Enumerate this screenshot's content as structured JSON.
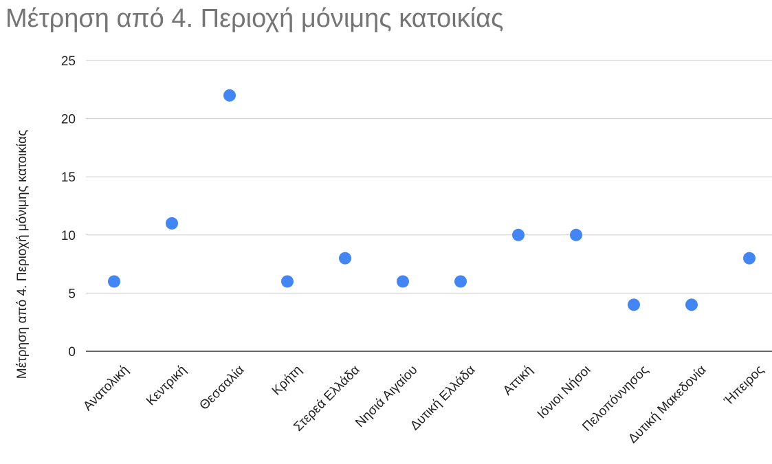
{
  "chart_data": {
    "type": "scatter",
    "title": "Μέτρηση από 4. Περιοχή μόνιμης κατοικίας",
    "xlabel": "",
    "ylabel": "Μέτρηση από 4. Περιοχή μόνιμης κατοικίας",
    "categories": [
      "Ανατολική",
      "Κεντρική",
      "Θεσσαλία",
      "Κρήτη",
      "Στερεά Ελλάδα",
      "Νησιά Αιγαίου",
      "Δυτική Ελλάδα",
      "Αττική",
      "Ιόνιοι Νήσοι",
      "Πελοπόννησος",
      "Δυτική Μακεδονία",
      "Ήπειρος"
    ],
    "values": [
      6,
      11,
      22,
      6,
      8,
      6,
      6,
      10,
      10,
      4,
      4,
      8
    ],
    "ylim": [
      0,
      25
    ],
    "yticks": [
      "0",
      "5",
      "10",
      "15",
      "20",
      "25"
    ],
    "grid": true,
    "point_color": "#4285f4",
    "grid_color": "#cccccc",
    "axis_color": "#333333"
  }
}
